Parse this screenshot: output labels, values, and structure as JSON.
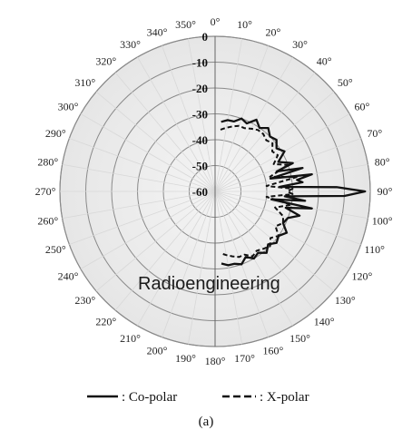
{
  "chart_data": {
    "type": "polar",
    "angle_unit": "degrees",
    "angle_direction": "clockwise",
    "zero_direction": "top",
    "angle_labels": [
      "0°",
      "10°",
      "20°",
      "30°",
      "40°",
      "50°",
      "60°",
      "70°",
      "80°",
      "90°",
      "100°",
      "110°",
      "120°",
      "130°",
      "140°",
      "150°",
      "160°",
      "170°",
      "180°",
      "190°",
      "200°",
      "210°",
      "220°",
      "230°",
      "240°",
      "250°",
      "260°",
      "270°",
      "280°",
      "290°",
      "300°",
      "310°",
      "320°",
      "330°",
      "340°",
      "350°"
    ],
    "radial_labels": [
      "0",
      "-10",
      "-20",
      "-30",
      "-40",
      "-50",
      "-60"
    ],
    "rlim": [
      -60,
      0
    ],
    "grid": true,
    "series": [
      {
        "name": "Co-polar",
        "line": "solid",
        "theta": [
          5,
          10,
          15,
          20,
          25,
          30,
          35,
          40,
          45,
          50,
          55,
          60,
          65,
          70,
          72,
          75,
          77,
          80,
          82,
          84,
          86,
          88,
          90,
          92,
          94,
          96,
          98,
          100,
          103,
          106,
          110,
          115,
          120,
          125,
          130,
          135,
          140,
          145,
          150,
          155,
          160,
          165,
          170,
          175
        ],
        "r": [
          -33,
          -32,
          -32,
          -30,
          -31,
          -28,
          -30,
          -28,
          -30,
          -29,
          -31,
          -29,
          -33,
          -28,
          -35,
          -25,
          -38,
          -22,
          -28,
          -26,
          -35,
          -13,
          -2,
          -10,
          -33,
          -25,
          -38,
          -22,
          -32,
          -26,
          -30,
          -31,
          -28,
          -30,
          -29,
          -31,
          -29,
          -31,
          -30,
          -32,
          -30,
          -31,
          -31,
          -32
        ]
      },
      {
        "name": "X-polar",
        "line": "dashed",
        "theta": [
          5,
          10,
          15,
          20,
          25,
          30,
          35,
          40,
          45,
          50,
          55,
          60,
          65,
          70,
          75,
          80,
          84,
          88,
          90,
          92,
          96,
          100,
          105,
          110,
          115,
          120,
          125,
          130,
          135,
          140,
          145,
          150,
          155,
          160,
          165,
          170,
          175
        ],
        "r": [
          -36,
          -35,
          -34,
          -33,
          -33,
          -32,
          -31,
          -31,
          -32,
          -31,
          -33,
          -32,
          -35,
          -30,
          -38,
          -28,
          -40,
          -30,
          -32,
          -30,
          -40,
          -30,
          -36,
          -32,
          -31,
          -33,
          -30,
          -32,
          -30,
          -31,
          -32,
          -31,
          -33,
          -33,
          -34,
          -35,
          -36
        ]
      }
    ],
    "legend": {
      "position": "bottom",
      "entries": [
        {
          "series": "Co-polar",
          "text": ": Co-polar",
          "line": "solid"
        },
        {
          "series": "X-polar",
          "text": ": X-polar",
          "line": "dashed"
        }
      ]
    }
  },
  "watermark": "Radioengineering",
  "caption": "(a)"
}
